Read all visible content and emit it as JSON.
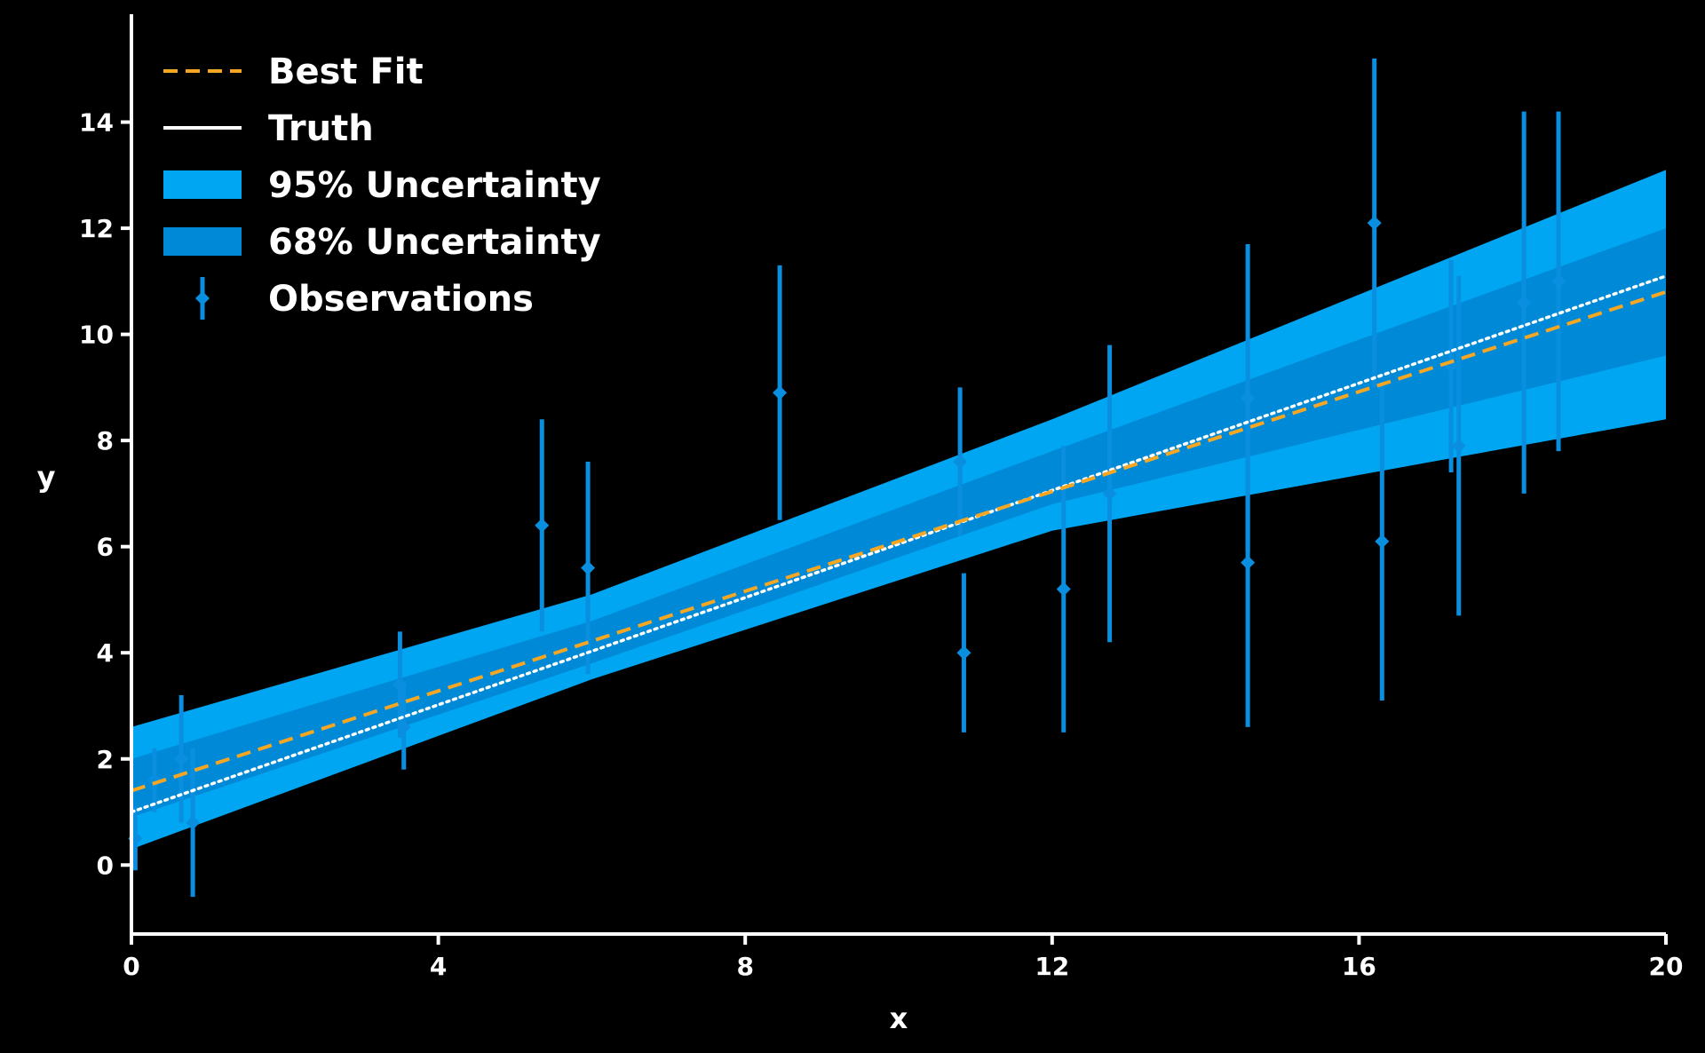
{
  "chart_data": {
    "type": "line",
    "title": "",
    "xlabel": "x",
    "ylabel": "y",
    "xlim": [
      0,
      20
    ],
    "ylim": [
      -1.3,
      16
    ],
    "x_ticks": [
      0,
      4,
      8,
      12,
      16,
      20
    ],
    "x_tick_labels": [
      "0",
      "4",
      "8",
      "12",
      "16",
      "20"
    ],
    "y_ticks": [
      0,
      2,
      4,
      6,
      8,
      10,
      12,
      14
    ],
    "y_tick_labels": [
      "0",
      "2",
      "4",
      "6",
      "8",
      "10",
      "12",
      "14"
    ],
    "grid": false,
    "legend_position": "top-left",
    "colors": {
      "background": "#000000",
      "best_fit": "#f5a623",
      "truth": "#ffffff",
      "band_95": "#00a6f2",
      "band_68": "#0089d6",
      "observations": "#0a8fe0",
      "axes": "#ffffff"
    },
    "series": [
      {
        "name": "Best Fit",
        "x": [
          0,
          20
        ],
        "y": [
          1.4,
          10.8
        ],
        "style": "dashed"
      },
      {
        "name": "Truth",
        "x": [
          0,
          20
        ],
        "y": [
          1.0,
          11.1
        ],
        "style": "dotted"
      },
      {
        "name": "95% Uncertainty",
        "x": [
          0,
          6,
          12,
          20
        ],
        "lower": [
          0.3,
          3.5,
          6.3,
          8.4
        ],
        "upper": [
          2.6,
          5.1,
          8.4,
          13.1
        ]
      },
      {
        "name": "68% Uncertainty",
        "x": [
          0,
          6,
          12,
          20
        ],
        "lower": [
          0.9,
          3.8,
          6.8,
          9.6
        ],
        "upper": [
          2.0,
          4.6,
          7.8,
          12.0
        ]
      },
      {
        "name": "Observations",
        "points": [
          {
            "x": 0.05,
            "y": 0.5,
            "err": 0.6
          },
          {
            "x": 0.3,
            "y": 1.6,
            "err": 0.6
          },
          {
            "x": 0.65,
            "y": 2.0,
            "err": 1.2
          },
          {
            "x": 0.8,
            "y": 0.8,
            "err": 1.4
          },
          {
            "x": 3.5,
            "y": 3.4,
            "err": 1.0
          },
          {
            "x": 3.55,
            "y": 2.6,
            "err": 0.8
          },
          {
            "x": 5.35,
            "y": 6.4,
            "err": 2.0
          },
          {
            "x": 5.95,
            "y": 5.6,
            "err": 2.0
          },
          {
            "x": 8.45,
            "y": 8.9,
            "err": 2.4
          },
          {
            "x": 10.8,
            "y": 7.6,
            "err": 1.4
          },
          {
            "x": 10.85,
            "y": 4.0,
            "err": 1.5
          },
          {
            "x": 12.15,
            "y": 5.2,
            "err": 2.7
          },
          {
            "x": 12.75,
            "y": 7.0,
            "err": 2.8
          },
          {
            "x": 14.55,
            "y": 5.7,
            "err": 3.1
          },
          {
            "x": 14.55,
            "y": 8.8,
            "err": 2.9
          },
          {
            "x": 16.2,
            "y": 12.1,
            "err": 3.1
          },
          {
            "x": 16.3,
            "y": 6.1,
            "err": 3.0
          },
          {
            "x": 17.2,
            "y": 9.4,
            "err": 2.0
          },
          {
            "x": 17.3,
            "y": 7.9,
            "err": 3.2
          },
          {
            "x": 18.15,
            "y": 10.6,
            "err": 3.6
          },
          {
            "x": 18.6,
            "y": 11.0,
            "err": 3.2
          }
        ]
      }
    ]
  }
}
